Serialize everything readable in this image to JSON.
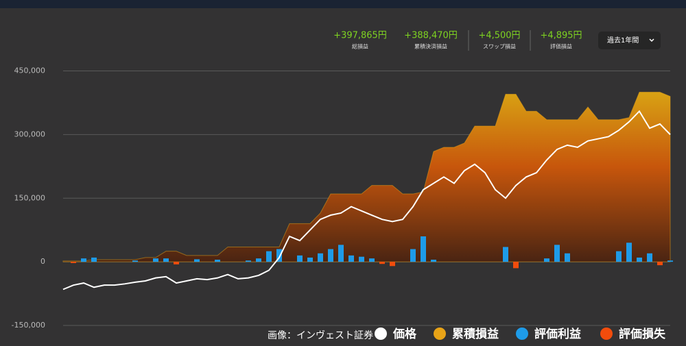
{
  "header": {
    "stats": [
      {
        "value": "+397,865円",
        "label": "総損益"
      },
      {
        "value": "+388,470円",
        "label": "累積決済損益"
      },
      {
        "value": "+4,500円",
        "label": "スワップ損益"
      },
      {
        "value": "+4,895円",
        "label": "評価損益"
      }
    ],
    "period": "過去1年間"
  },
  "caption": "画像：インヴェスト証券",
  "chart_data": {
    "type": "combo",
    "ylim": [
      -150000,
      450000
    ],
    "yticks": [
      {
        "value": -150000,
        "label": "-150,000"
      },
      0,
      {
        "value": 150000,
        "label": "150,000"
      },
      {
        "value": 300000,
        "label": "300,000"
      },
      {
        "value": 450000,
        "label": "450,000"
      }
    ],
    "grid": true,
    "series": [
      {
        "name": "価格",
        "type": "line",
        "color": "#ffffff",
        "values": [
          -65000,
          -55000,
          -50000,
          -60000,
          -55000,
          -55000,
          -52000,
          -48000,
          -45000,
          -38000,
          -35000,
          -50000,
          -45000,
          -40000,
          -42000,
          -38000,
          -30000,
          -40000,
          -38000,
          -32000,
          -20000,
          10000,
          60000,
          50000,
          75000,
          100000,
          110000,
          115000,
          130000,
          120000,
          110000,
          100000,
          95000,
          100000,
          130000,
          170000,
          185000,
          200000,
          185000,
          215000,
          230000,
          210000,
          170000,
          150000,
          180000,
          200000,
          210000,
          240000,
          265000,
          275000,
          270000,
          285000,
          290000,
          295000,
          310000,
          330000,
          355000,
          315000,
          325000,
          300000
        ]
      },
      {
        "name": "累積損益",
        "type": "area",
        "color": "#e8a317",
        "values": [
          2000,
          2000,
          2000,
          5000,
          5000,
          5000,
          5000,
          5000,
          10000,
          10000,
          25000,
          25000,
          15000,
          15000,
          15000,
          15000,
          35000,
          35000,
          35000,
          35000,
          35000,
          35000,
          90000,
          90000,
          90000,
          115000,
          160000,
          160000,
          160000,
          160000,
          180000,
          180000,
          180000,
          160000,
          160000,
          165000,
          260000,
          270000,
          270000,
          280000,
          320000,
          320000,
          320000,
          395000,
          395000,
          355000,
          355000,
          335000,
          335000,
          335000,
          335000,
          365000,
          335000,
          335000,
          335000,
          340000,
          400000,
          400000,
          400000,
          390000
        ]
      },
      {
        "name": "評価利益",
        "type": "bar",
        "color": "#1e9be8",
        "values": [
          null,
          null,
          8000,
          10000,
          null,
          null,
          null,
          3000,
          null,
          8000,
          8000,
          null,
          null,
          6000,
          null,
          5000,
          null,
          null,
          3000,
          8000,
          25000,
          30000,
          null,
          15000,
          10000,
          20000,
          30000,
          40000,
          15000,
          12000,
          8000,
          null,
          null,
          null,
          30000,
          60000,
          5000,
          null,
          null,
          null,
          null,
          null,
          null,
          35000,
          null,
          null,
          null,
          8000,
          40000,
          20000,
          null,
          null,
          null,
          null,
          25000,
          45000,
          10000,
          20000,
          null,
          3000
        ]
      },
      {
        "name": "評価損失",
        "type": "bar",
        "color": "#f24c0c",
        "values": [
          null,
          -3000,
          null,
          null,
          null,
          null,
          null,
          null,
          null,
          null,
          null,
          -6000,
          null,
          null,
          null,
          null,
          null,
          null,
          null,
          null,
          null,
          null,
          null,
          null,
          null,
          null,
          null,
          null,
          null,
          null,
          null,
          -5000,
          -10000,
          null,
          null,
          null,
          null,
          null,
          null,
          null,
          null,
          null,
          null,
          null,
          -15000,
          null,
          null,
          null,
          null,
          null,
          null,
          null,
          null,
          null,
          null,
          null,
          null,
          null,
          -8000,
          null
        ]
      }
    ]
  }
}
